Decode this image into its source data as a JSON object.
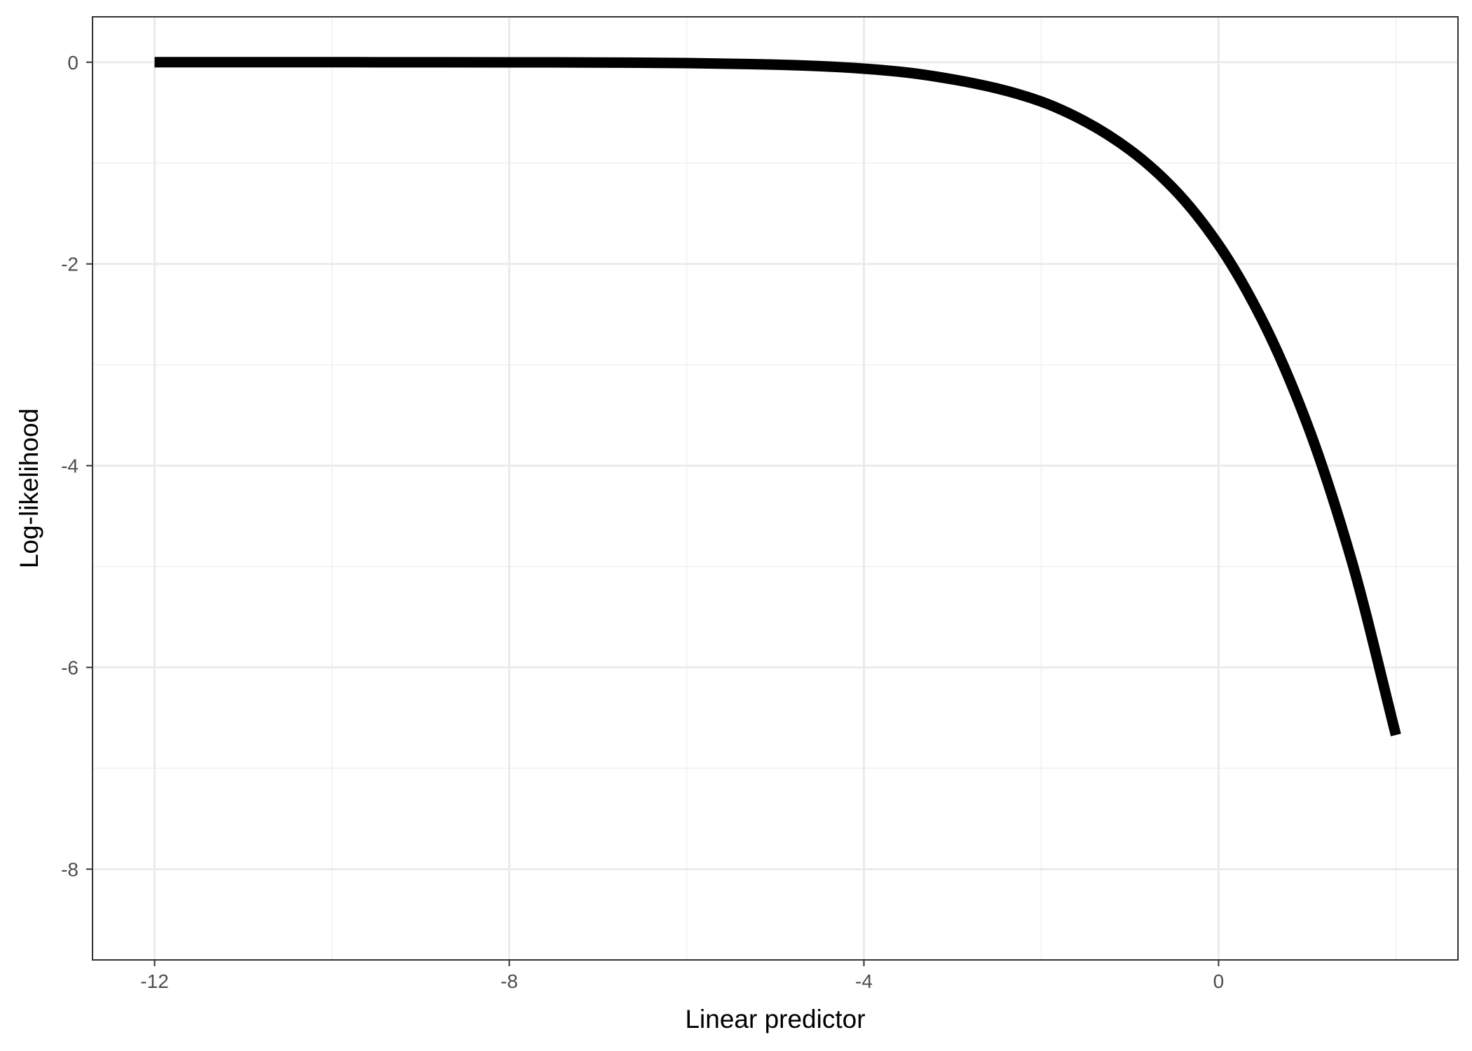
{
  "chart_data": {
    "type": "line",
    "title": "",
    "xlabel": "Linear predictor",
    "ylabel": "Log-likelihood",
    "xlim": [
      -12.7,
      2.7
    ],
    "ylim": [
      -8.9,
      0.45
    ],
    "x_ticks": [
      -12,
      -8,
      -4,
      0
    ],
    "x_tick_labels": [
      "-12",
      "-8",
      "-4",
      "0"
    ],
    "x_minor_ticks": [
      -10,
      -6,
      -2,
      2
    ],
    "y_ticks": [
      0,
      -2,
      -4,
      -6,
      -8
    ],
    "y_tick_labels": [
      "0",
      "-2",
      "-4",
      "-6",
      "-8"
    ],
    "y_minor_ticks": [
      -1,
      -3,
      -5,
      -7
    ],
    "grid": true,
    "legend": "none",
    "series": [
      {
        "color": "#000000",
        "x": [
          -12,
          -11,
          -10,
          -9,
          -8,
          -7,
          -6,
          -5,
          -4.5,
          -4,
          -3.5,
          -3,
          -2.5,
          -2,
          -1.5,
          -1,
          -0.5,
          0,
          0.5,
          1,
          1.5,
          2
        ],
        "y": [
          -2e-05,
          -5e-05,
          -0.00014,
          -0.0004,
          -0.0011,
          -0.0032,
          -0.0087,
          -0.0237,
          -0.039,
          -0.064,
          -0.104,
          -0.17,
          -0.26,
          -0.39,
          -0.59,
          -0.87,
          -1.26,
          -1.81,
          -2.57,
          -3.59,
          -4.94,
          -6.67
        ]
      }
    ]
  }
}
